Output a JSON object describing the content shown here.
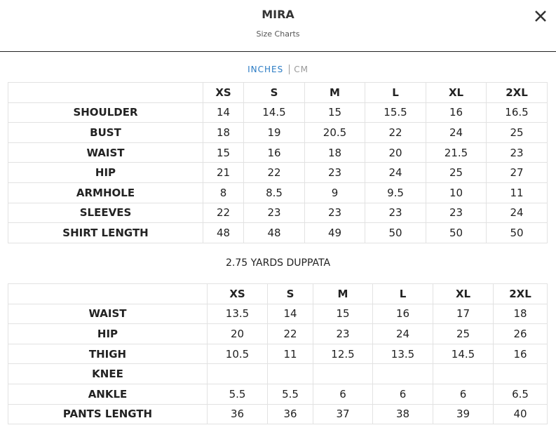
{
  "header": {
    "title": "MIRA",
    "subtitle": "Size Charts"
  },
  "units": {
    "active": "INCHES",
    "other": "CM"
  },
  "tables": [
    {
      "columns": [
        "XS",
        "S",
        "M",
        "L",
        "XL",
        "2XL"
      ],
      "rows": [
        {
          "label": "SHOULDER",
          "values": [
            "14",
            "14.5",
            "15",
            "15.5",
            "16",
            "16.5"
          ]
        },
        {
          "label": "BUST",
          "values": [
            "18",
            "19",
            "20.5",
            "22",
            "24",
            "25"
          ]
        },
        {
          "label": "WAIST",
          "values": [
            "15",
            "16",
            "18",
            "20",
            "21.5",
            "23"
          ]
        },
        {
          "label": "HIP",
          "values": [
            "21",
            "22",
            "23",
            "24",
            "25",
            "27"
          ]
        },
        {
          "label": "ARMHOLE",
          "values": [
            "8",
            "8.5",
            "9",
            "9.5",
            "10",
            "11"
          ]
        },
        {
          "label": "SLEEVES",
          "values": [
            "22",
            "23",
            "23",
            "23",
            "23",
            "24"
          ]
        },
        {
          "label": "SHIRT LENGTH",
          "values": [
            "48",
            "48",
            "49",
            "50",
            "50",
            "50"
          ]
        }
      ]
    },
    {
      "columns": [
        "XS",
        "S",
        "M",
        "L",
        "XL",
        "2XL"
      ],
      "rows": [
        {
          "label": "WAIST",
          "values": [
            "13.5",
            "14",
            "15",
            "16",
            "17",
            "18"
          ]
        },
        {
          "label": "HIP",
          "values": [
            "20",
            "22",
            "23",
            "24",
            "25",
            "26"
          ]
        },
        {
          "label": "THIGH",
          "values": [
            "10.5",
            "11",
            "12.5",
            "13.5",
            "14.5",
            "16"
          ]
        },
        {
          "label": "KNEE",
          "values": [
            null,
            null,
            null,
            null,
            null,
            null
          ]
        },
        {
          "label": "ANKLE",
          "values": [
            "5.5",
            "5.5",
            "6",
            "6",
            "6",
            "6.5"
          ]
        },
        {
          "label": "PANTS LENGTH",
          "values": [
            "36",
            "36",
            "37",
            "38",
            "39",
            "40"
          ]
        }
      ]
    }
  ],
  "note": "2.75 YARDS DUPPATA"
}
